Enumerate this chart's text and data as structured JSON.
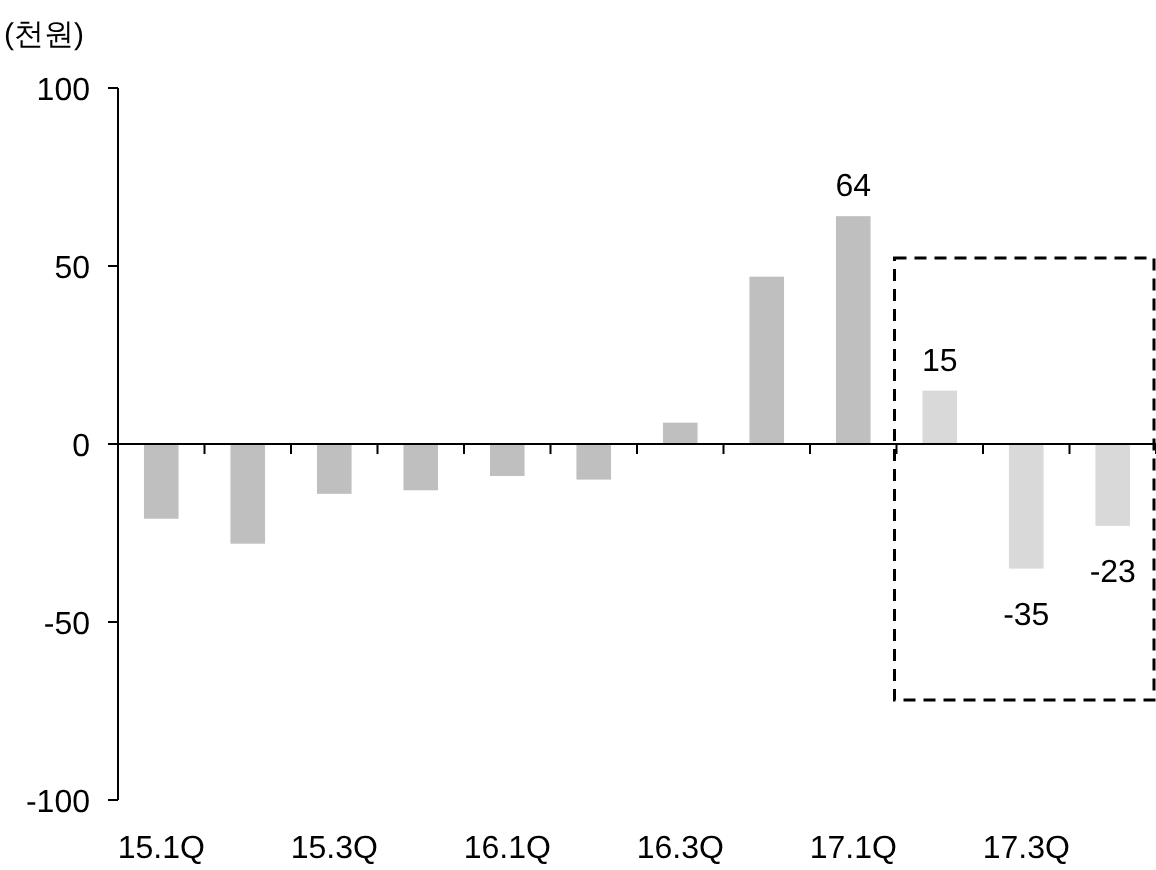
{
  "chart_data": {
    "type": "bar",
    "ylabel": "(천원)",
    "categories": [
      "15.1Q",
      null,
      "15.3Q",
      null,
      "16.1Q",
      null,
      "16.3Q",
      null,
      "17.1Q",
      null,
      "17.3Q",
      null
    ],
    "values": [
      -21,
      -28,
      -14,
      -13,
      -9,
      -10,
      6,
      47,
      64,
      15,
      -35,
      -23
    ],
    "colors": [
      "#bfbfbf",
      "#bfbfbf",
      "#bfbfbf",
      "#bfbfbf",
      "#bfbfbf",
      "#bfbfbf",
      "#bfbfbf",
      "#bfbfbf",
      "#bfbfbf",
      "#d9d9d9",
      "#d9d9d9",
      "#d9d9d9"
    ],
    "value_labels": [
      null,
      null,
      null,
      null,
      null,
      null,
      null,
      null,
      "64",
      "15",
      "-35",
      "-23"
    ],
    "ylim": [
      -100,
      100
    ],
    "yticks": [
      -100,
      -50,
      0,
      50,
      100
    ]
  }
}
